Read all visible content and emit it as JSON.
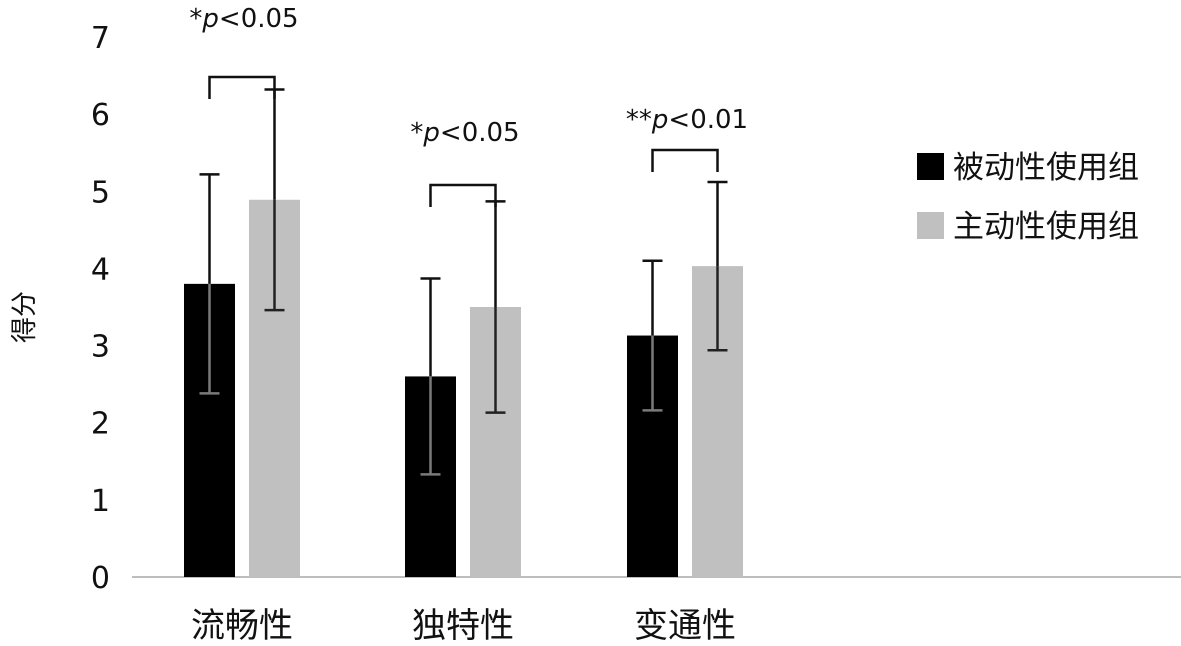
{
  "chart_data": {
    "type": "bar",
    "title": "",
    "xlabel": "",
    "ylabel": "得分",
    "ylim": [
      0,
      7
    ],
    "yticks": [
      0,
      1,
      2,
      3,
      4,
      5,
      6,
      7
    ],
    "categories": [
      "流畅性",
      "独特性",
      "变通性"
    ],
    "series": [
      {
        "name": "被动性使用组",
        "color": "#000000",
        "values": [
          3.8,
          2.6,
          3.13
        ],
        "error": [
          1.42,
          1.27,
          0.97
        ]
      },
      {
        "name": "主动性使用组",
        "color": "#c0c0c0",
        "values": [
          4.89,
          3.5,
          4.03
        ],
        "error": [
          1.43,
          1.37,
          1.09
        ]
      }
    ],
    "annotations": [
      {
        "category": 0,
        "stars": "*",
        "p": "p",
        "rest": "<0.05"
      },
      {
        "category": 1,
        "stars": "*",
        "p": "p",
        "rest": "<0.05"
      },
      {
        "category": 2,
        "stars": "**",
        "p": "p",
        "rest": "<0.01"
      }
    ],
    "grid": false,
    "legend_position": "right"
  }
}
